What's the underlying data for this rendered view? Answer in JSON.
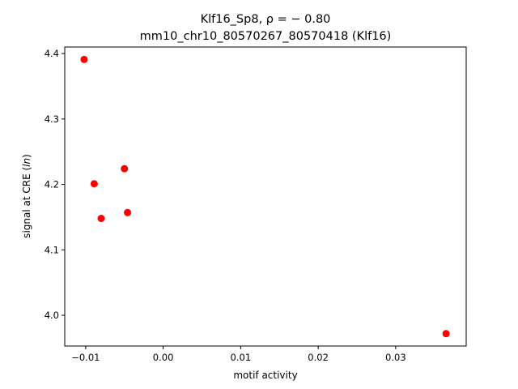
{
  "chart_data": {
    "type": "scatter",
    "title_line1": "Klf16_Sp8, ρ = − 0.80",
    "title_line2": "mm10_chr10_80570267_80570418 (Klf16)",
    "xlabel": "motif activity",
    "ylabel": "signal at CRE (ln)",
    "xlim": [
      -0.0127,
      0.0391
    ],
    "ylim": [
      3.953,
      4.41
    ],
    "x_ticks": [
      -0.01,
      0.0,
      0.01,
      0.02,
      0.03
    ],
    "x_tick_labels": [
      "−0.01",
      "0.00",
      "0.01",
      "0.02",
      "0.03"
    ],
    "y_ticks": [
      4.0,
      4.1,
      4.2,
      4.3,
      4.4
    ],
    "y_tick_labels": [
      "4.0",
      "4.1",
      "4.2",
      "4.3",
      "4.4"
    ],
    "grid": false,
    "marker_color": "#ff0000",
    "points": [
      {
        "x": -0.0102,
        "y": 4.391
      },
      {
        "x": -0.0089,
        "y": 4.201
      },
      {
        "x": -0.008,
        "y": 4.148
      },
      {
        "x": -0.005,
        "y": 4.224
      },
      {
        "x": -0.0046,
        "y": 4.157
      },
      {
        "x": 0.0365,
        "y": 3.972
      }
    ]
  }
}
